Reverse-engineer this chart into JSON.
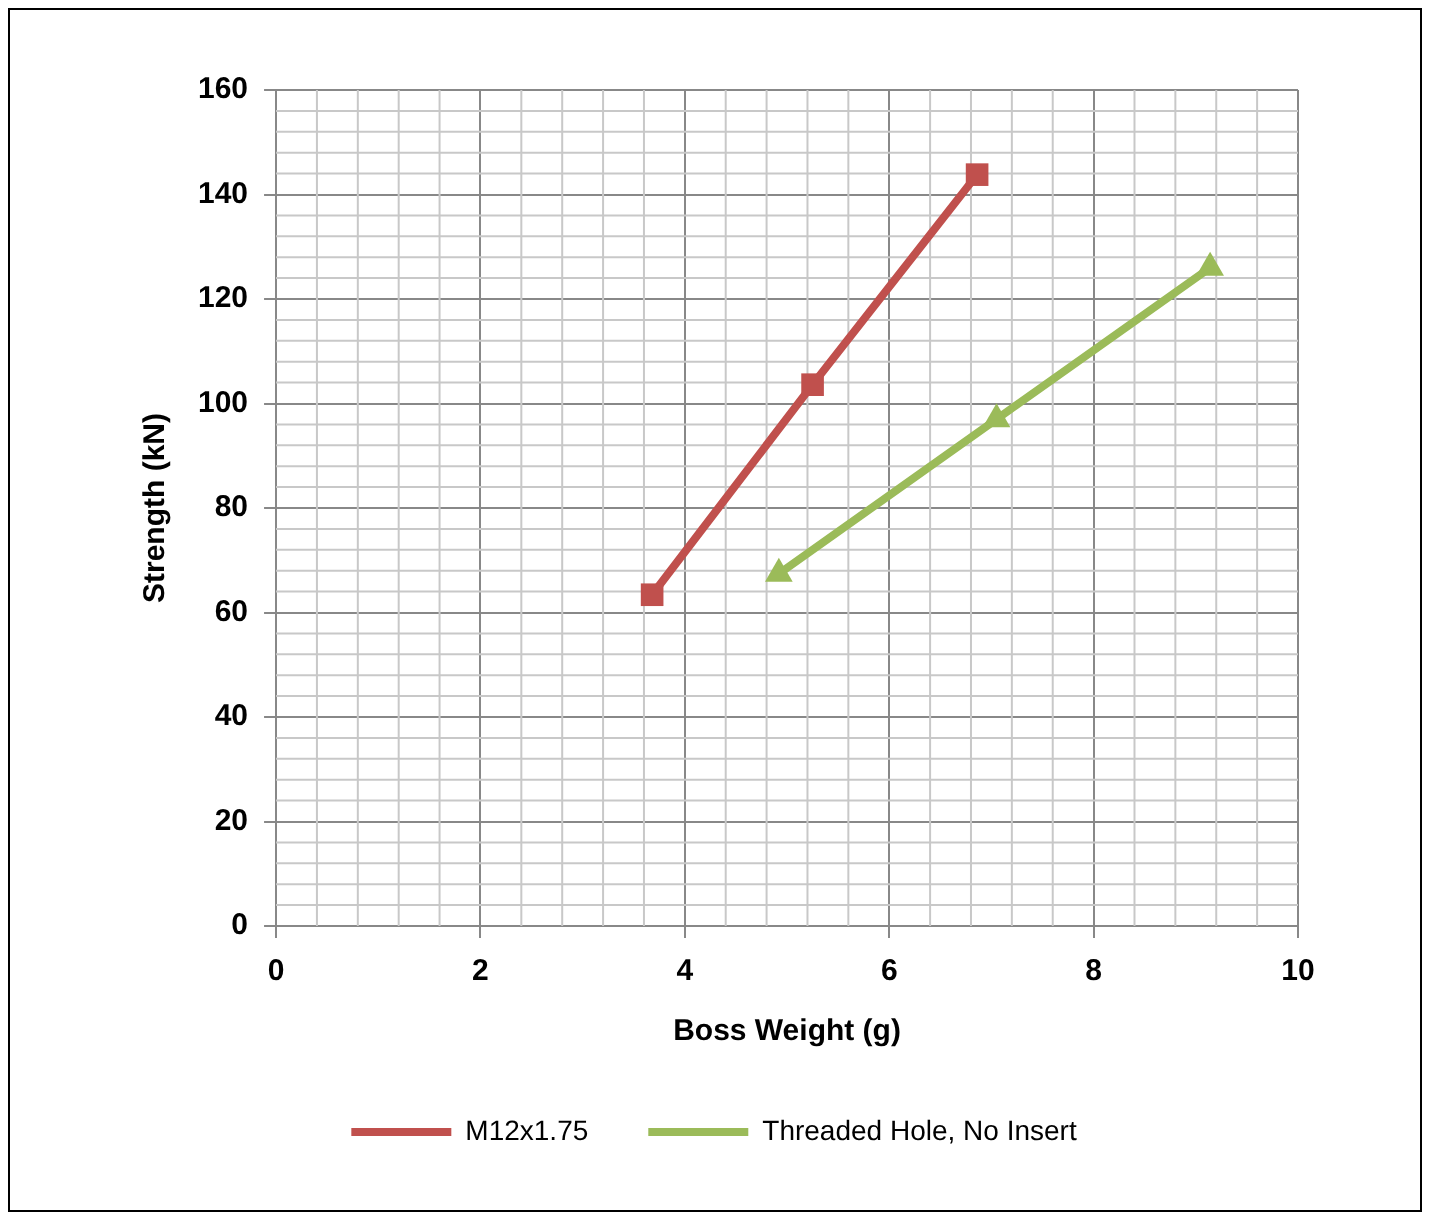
{
  "chart_data": {
    "type": "line",
    "xlabel": "Boss Weight (g)",
    "ylabel": "Strength (kN)",
    "xlim": [
      0,
      10
    ],
    "xticks": [
      0,
      2,
      4,
      6,
      8,
      10
    ],
    "ylim": [
      0,
      160
    ],
    "yticks": [
      0,
      20,
      40,
      60,
      80,
      100,
      120,
      140,
      160
    ],
    "grid": true,
    "legend": "bottom",
    "series": [
      {
        "name": "M12x1.75",
        "color": "#c0504d",
        "marker": "square",
        "x": [
          3.68,
          5.25,
          6.86
        ],
        "values": [
          63.4,
          103.6,
          143.8
        ]
      },
      {
        "name": "Threaded Hole, No Insert",
        "color": "#9bbb59",
        "marker": "triangle",
        "x": [
          4.92,
          7.05,
          9.14
        ],
        "values": [
          67.4,
          97,
          126
        ]
      }
    ]
  }
}
